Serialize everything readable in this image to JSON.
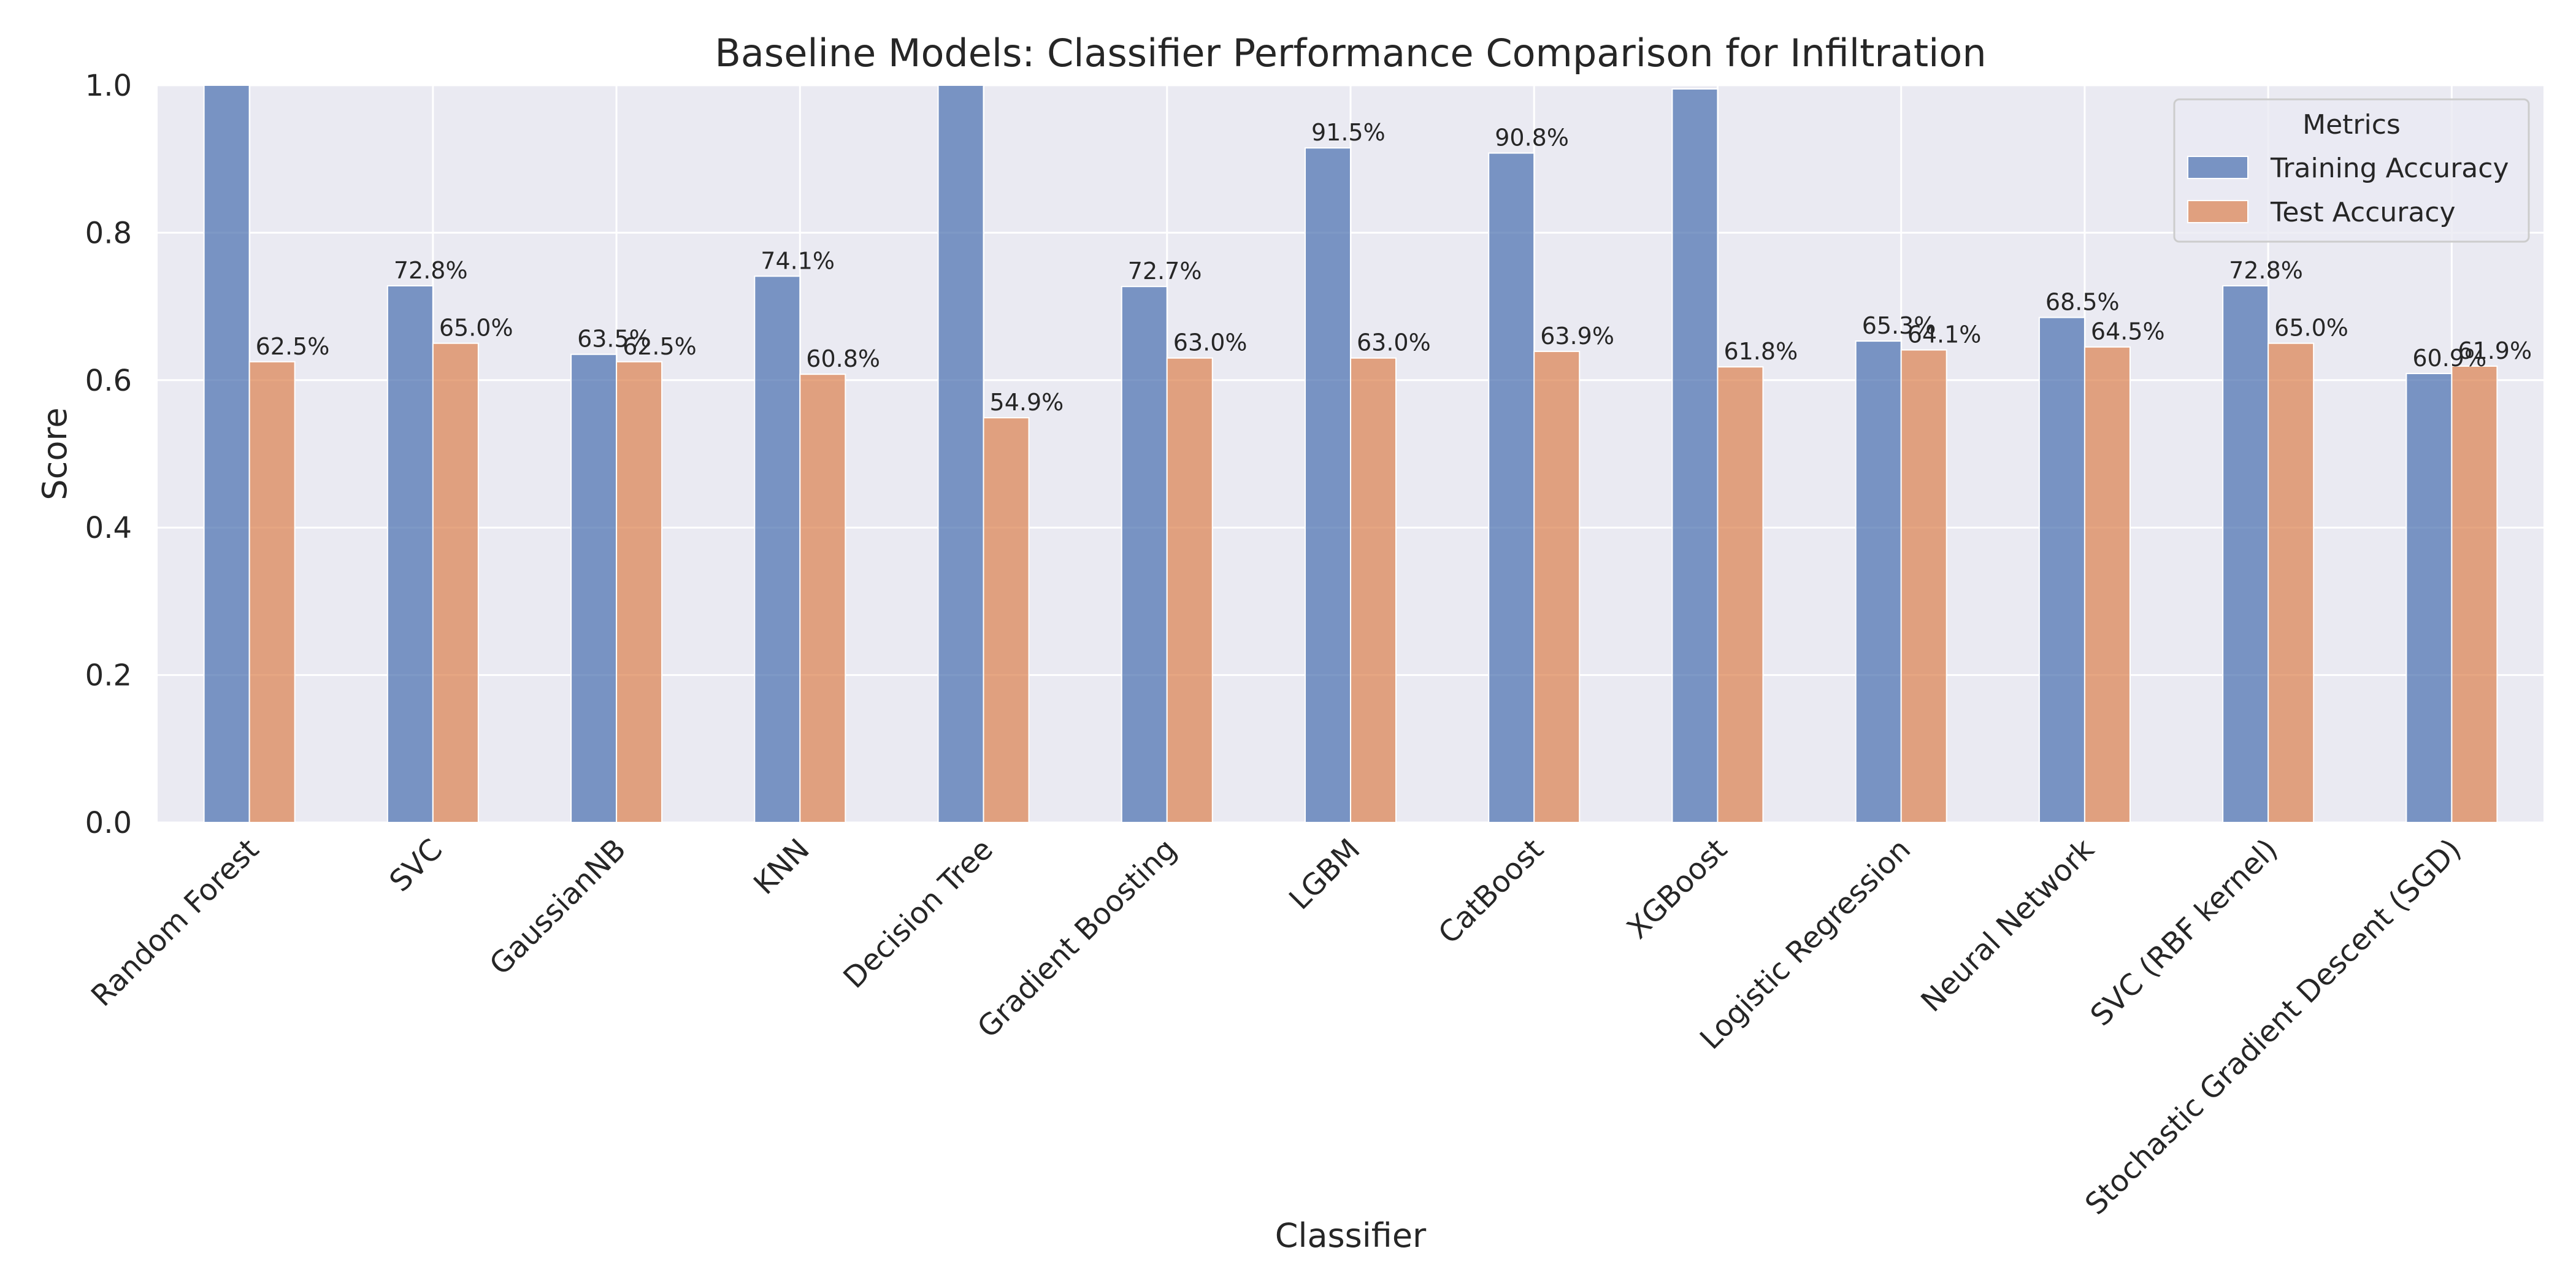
{
  "chart_data": {
    "type": "bar",
    "title": "Baseline Models: Classifier Performance Comparison for Infiltration",
    "xlabel": "Classifier",
    "ylabel": "Score",
    "ylim": [
      0,
      1.0
    ],
    "yticks": [
      "0.0",
      "0.2",
      "0.4",
      "0.6",
      "0.8",
      "1.0"
    ],
    "grid": true,
    "legend": {
      "title": "Metrics",
      "placement": "top-right"
    },
    "categories": [
      "Random Forest",
      "SVC",
      "GaussianNB",
      "KNN",
      "Decision Tree",
      "Gradient Boosting",
      "LGBM",
      "CatBoost",
      "XGBoost",
      "Logistic Regression",
      "Neural Network",
      "SVC (RBF kernel)",
      "Stochastic Gradient Descent (SGD)"
    ],
    "series": [
      {
        "name": "Training Accuracy",
        "color": "#4c72b0",
        "values": [
          1.0,
          0.728,
          0.635,
          0.741,
          1.0,
          0.727,
          0.915,
          0.908,
          0.995,
          0.653,
          0.685,
          0.728,
          0.609
        ],
        "labels": [
          "",
          "72.8%",
          "63.5%",
          "74.1%",
          "",
          "72.7%",
          "91.5%",
          "90.8%",
          "",
          "65.3%",
          "68.5%",
          "72.8%",
          "60.9%"
        ]
      },
      {
        "name": "Test Accuracy",
        "color": "#dd8452",
        "values": [
          0.625,
          0.65,
          0.625,
          0.608,
          0.549,
          0.63,
          0.63,
          0.639,
          0.618,
          0.641,
          0.645,
          0.65,
          0.619
        ],
        "labels": [
          "62.5%",
          "65.0%",
          "62.5%",
          "60.8%",
          "54.9%",
          "63.0%",
          "63.0%",
          "63.9%",
          "61.8%",
          "64.1%",
          "64.5%",
          "65.0%",
          "61.9%"
        ]
      }
    ]
  }
}
